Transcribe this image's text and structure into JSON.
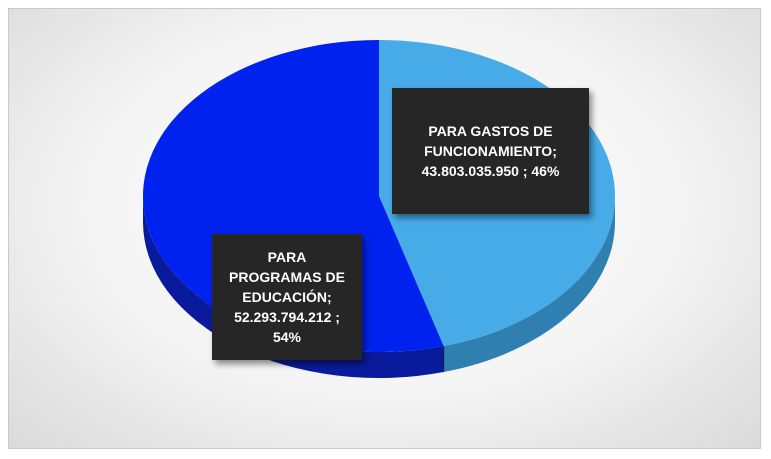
{
  "chart_data": {
    "type": "pie",
    "title": "",
    "slices": [
      {
        "label": "PARA GASTOS DE FUNCIONAMIENTO",
        "value": 43803035950,
        "value_text": "43.803.035.950",
        "percent_text": "46%",
        "color": "#47abe8",
        "side_color": "#2f7fb0"
      },
      {
        "label": "PARA PROGRAMAS DE EDUCACIÓN",
        "value": 52293794212,
        "value_text": "52.293.794.212",
        "percent_text": "54%",
        "color": "#0022ee",
        "side_color": "#0a1a9c"
      }
    ],
    "data_labels": [
      {
        "lines": [
          "PARA GASTOS DE",
          "FUNCIONAMIENTO;",
          "43.803.035.950 ; 46%"
        ]
      },
      {
        "lines": [
          "PARA",
          "PROGRAMAS DE",
          "EDUCACIÓN;",
          "52.293.794.212 ;",
          "54%"
        ]
      }
    ],
    "style": "3d-pie",
    "legend": "none"
  }
}
